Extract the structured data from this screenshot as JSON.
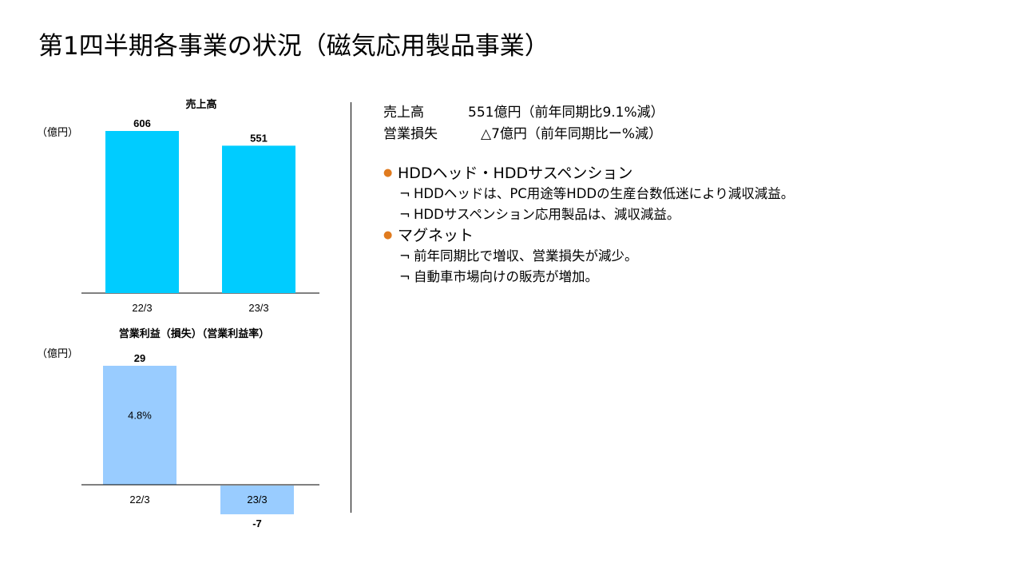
{
  "page": {
    "title": "第1四半期各事業の状況（磁気応用製品事業）"
  },
  "summary": {
    "revenue_label": "売上高",
    "revenue_text": "551億円（前年同期比9.1%減）",
    "profit_label": "営業損失",
    "profit_text": "△7億円（前年同期比ー%減）"
  },
  "sections": [
    {
      "heading": "HDDヘッド・HDDサスペンション",
      "items": [
        "HDDヘッドは、PC用途等HDDの生産台数低迷により減収減益。",
        "HDDサスペンション応用製品は、減収減益。"
      ]
    },
    {
      "heading": "マグネット",
      "items": [
        "前年同期比で増収、営業損失が減少。",
        "自動車市場向けの販売が増加。"
      ]
    }
  ],
  "colors": {
    "bullet": "#e07b1f",
    "revenue_bar": "#00ccff",
    "profit_bar": "#99ccff"
  },
  "chart_data": [
    {
      "type": "bar",
      "title": "売上高",
      "unit": "（億円）",
      "categories": [
        "22/3",
        "23/3"
      ],
      "values": [
        606,
        551
      ],
      "value_labels": [
        "606",
        "551"
      ],
      "ylim": [
        0,
        606
      ],
      "grid": false,
      "color": "#00ccff"
    },
    {
      "type": "bar",
      "title": "営業利益（損失）（営業利益率）",
      "unit": "（億円）",
      "categories": [
        "22/3",
        "23/3"
      ],
      "values": [
        29,
        -7
      ],
      "value_labels": [
        "29",
        "-7"
      ],
      "margin_labels": [
        "4.8%",
        ""
      ],
      "ylim": [
        -7,
        29
      ],
      "grid": false,
      "color": "#99ccff"
    }
  ]
}
